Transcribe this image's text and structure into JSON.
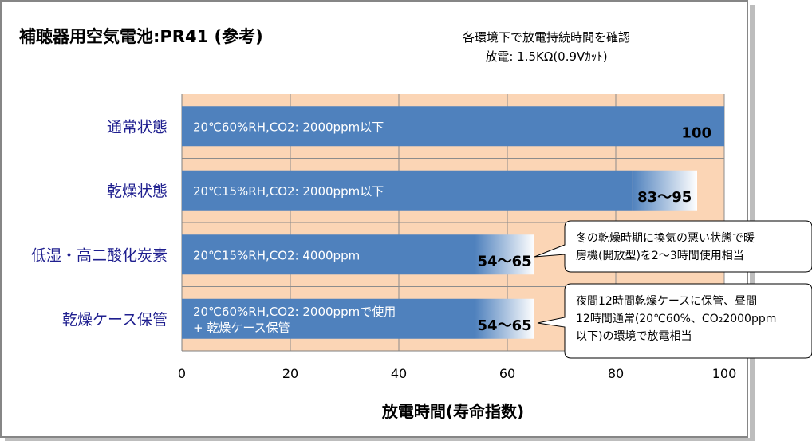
{
  "title": "補聴器用空気電池:PR41 (参考)",
  "note": {
    "line1": "各環境下で放電持続時間を確認",
    "line2": "放電: 1.5KΩ(0.9Vｶｯﾄ)"
  },
  "chart_data": {
    "type": "bar",
    "orientation": "horizontal",
    "xlabel": "放電時間(寿命指数)",
    "ylabel": "",
    "xlim": [
      0,
      100
    ],
    "x_ticks": [
      0,
      20,
      40,
      60,
      80,
      100
    ],
    "grid": true,
    "categories": [
      "通常状態",
      "乾燥状態",
      "低湿・高二酸化炭素",
      "乾燥ケース保管"
    ],
    "conditions": [
      [
        "20℃60%RH,CO2: 2000ppm以下"
      ],
      [
        "20℃15%RH,CO2: 2000ppm以下"
      ],
      [
        "20℃15%RH,CO2: 4000ppm"
      ],
      [
        "20℃60%RH,CO2: 2000ppmで使用",
        "+ 乾燥ケース保管"
      ]
    ],
    "values_low": [
      100,
      83,
      54,
      54
    ],
    "values_high": [
      100,
      95,
      65,
      65
    ],
    "value_labels": [
      "100",
      "83～95",
      "54～65",
      "54～65"
    ],
    "colors": {
      "plot_background": "#fbd5b5",
      "bar": "#4f81bd",
      "bar_range_light": "#ffffff",
      "category_text": "#1f1f8f",
      "gridline": "#8c8c8c"
    }
  },
  "callouts": [
    {
      "lines": [
        "冬の乾燥時期に換気の悪い状態で暖",
        "房機(開放型)を2～3時間使用相当"
      ]
    },
    {
      "lines": [
        "夜間12時間乾燥ケースに保管、昼間",
        "12時間通常(20℃60%、CO₂2000ppm",
        "以下)の環境で放電相当"
      ]
    }
  ]
}
